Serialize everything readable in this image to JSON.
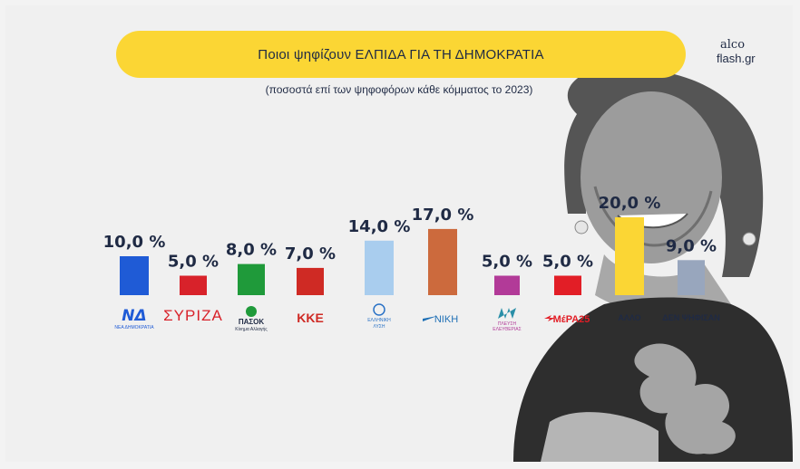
{
  "header": {
    "title": "Ποιοι ψηφίζουν ΕΛΠΙΔΑ ΓΙΑ ΤΗ ΔΗΜΟΚΡΑΤΙΑ",
    "subtitle": "(ποσοστά επί των ψηφοφόρων κάθε κόμματος το 2023)"
  },
  "brand": {
    "line1": "alco",
    "line2": "flash.gr"
  },
  "colors": {
    "accent": "#fbd634",
    "text": "#1f2a44"
  },
  "chart_data": {
    "type": "bar",
    "title": "Ποιοι ψηφίζουν ΕΛΠΙΔΑ ΓΙΑ ΤΗ ΔΗΜΟΚΡΑΤΙΑ",
    "subtitle": "(ποσοστά επί των ψηφοφόρων κάθε κόμματος το 2023)",
    "categories": [
      "ΝΔ",
      "ΣΥΡΙΖΑ",
      "ΠΑΣΟΚ",
      "ΚΚΕ",
      "ΕΛΛΗΝΙΚΗ ΛΥΣΗ",
      "ΝΙΚΗ",
      "ΠΛΕΥΣΗ ΕΛΕΥΘΕΡΙΑΣ",
      "ΜέΡΑ25",
      "ΑΛΛΟ",
      "ΔΕΝ ΨΗΦΙΣΑΝ"
    ],
    "values": [
      10.0,
      5.0,
      8.0,
      7.0,
      14.0,
      17.0,
      5.0,
      5.0,
      20.0,
      9.0
    ],
    "value_labels": [
      "10,0 %",
      "5,0 %",
      "8,0 %",
      "7,0 %",
      "14,0 %",
      "17,0 %",
      "5,0 %",
      "5,0 %",
      "20,0 %",
      "9,0 %"
    ],
    "bar_colors": [
      "#1f5bd6",
      "#d8222a",
      "#1f9a3a",
      "#cf2a24",
      "#a9cdee",
      "#cc6a3d",
      "#b23a98",
      "#e21e26",
      "#fbd634",
      "#98a6bd"
    ],
    "logos": [
      {
        "text": "ΝΔ",
        "sub": "ΝΕΑ ΔΗΜΟΚΡΑΤΙΑ",
        "icon": "nd-logo"
      },
      {
        "text": "ΣΥΡΙΖΑ",
        "sub": "",
        "icon": "syriza-logo"
      },
      {
        "text": "ΠΑΣΟΚ",
        "sub": "Κίνημα Αλλαγής",
        "icon": "pasok-logo"
      },
      {
        "text": "ΚΚΕ",
        "sub": "",
        "icon": "kke-logo"
      },
      {
        "text": "ΕΛΛΗΝΙΚΗ",
        "sub": "ΛΥΣΗ",
        "icon": "elliniki-lysi-logo"
      },
      {
        "text": "ΝΙΚΗ",
        "sub": "",
        "icon": "niki-logo"
      },
      {
        "text": "ΠΛΕΥΣΗ",
        "sub": "ΕΛΕΥΘΕΡΙΑΣ",
        "icon": "plefsi-logo"
      },
      {
        "text": "ΜέΡΑ25",
        "sub": "",
        "icon": "mera25-logo"
      },
      {
        "text": "ΑΛΛΟ",
        "sub": "",
        "icon": ""
      },
      {
        "text": "ΔΕΝ ΨΗΦΙΣΑΝ",
        "sub": "",
        "icon": ""
      }
    ],
    "xlabel": "",
    "ylabel": "",
    "ylim": [
      0,
      20
    ],
    "grid": false,
    "legend": "none"
  }
}
